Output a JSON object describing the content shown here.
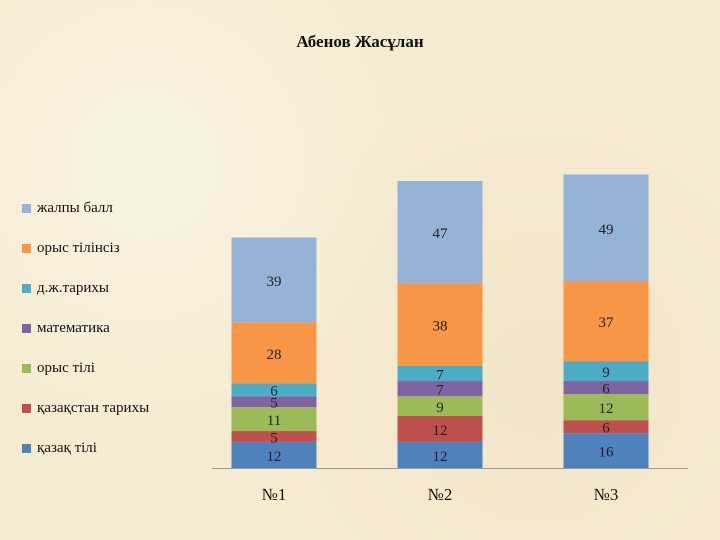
{
  "chart_data": {
    "type": "bar",
    "stacked": true,
    "title": "Абенов Жасұлан",
    "categories": [
      "№1",
      "№2",
      "№3"
    ],
    "series": [
      {
        "name": "қазақ тілі",
        "color": "#4f81bd",
        "values": [
          12,
          12,
          16
        ]
      },
      {
        "name": "қазақстан тарихы",
        "color": "#c0504d",
        "values": [
          5,
          12,
          6
        ]
      },
      {
        "name": "орыс тілі",
        "color": "#9bbb59",
        "values": [
          11,
          9,
          12
        ]
      },
      {
        "name": "математика",
        "color": "#8064a2",
        "values": [
          5,
          7,
          6
        ]
      },
      {
        "name": "д.ж.тарихы",
        "color": "#4bacc6",
        "values": [
          6,
          7,
          9
        ]
      },
      {
        "name": "орыс тілінсіз",
        "color": "#f79646",
        "values": [
          28,
          38,
          37
        ]
      },
      {
        "name": "жалпы балл",
        "color": "#95b3d7",
        "values": [
          39,
          47,
          49
        ]
      }
    ],
    "legend_position": "left",
    "grid": false
  }
}
